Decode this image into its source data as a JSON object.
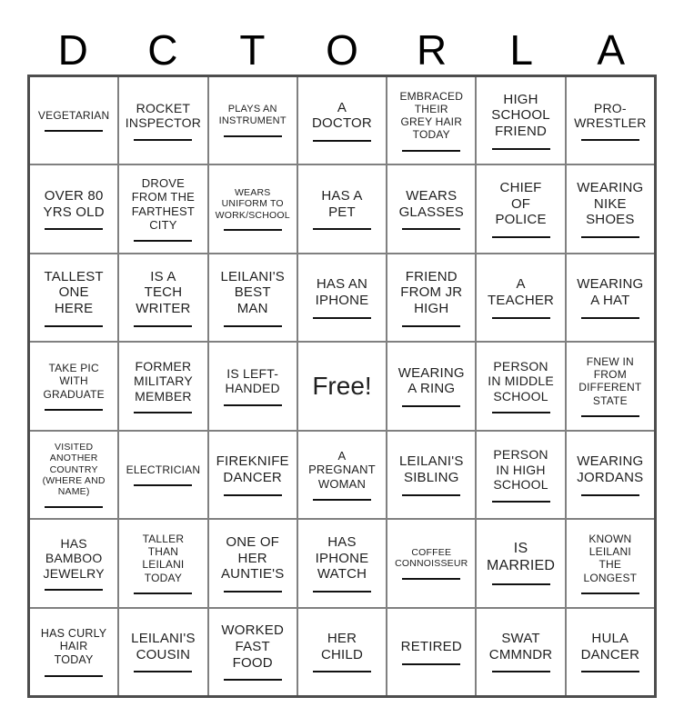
{
  "title_letters": [
    "D",
    "C",
    "T",
    "O",
    "R",
    "L",
    "A"
  ],
  "free_label": "Free!",
  "grid": {
    "rows": [
      [
        {
          "text": "VEGETARIAN",
          "fs": 12,
          "underline": true
        },
        {
          "text": "ROCKET\nINSPECTOR",
          "fs": 14,
          "underline": true
        },
        {
          "text": "PLAYS AN\nINSTRUMENT",
          "fs": 11,
          "underline": true
        },
        {
          "text": "A\nDOCTOR",
          "fs": 15,
          "underline": true
        },
        {
          "text": "EMBRACED\nTHEIR\nGREY HAIR\nTODAY",
          "fs": 12,
          "underline": true
        },
        {
          "text": "HIGH\nSCHOOL\nFRIEND",
          "fs": 15,
          "underline": true
        },
        {
          "text": "PRO-\nWRESTLER",
          "fs": 14,
          "underline": true
        }
      ],
      [
        {
          "text": "OVER 80\nYRS OLD",
          "fs": 15,
          "underline": true
        },
        {
          "text": "DROVE\nFROM THE\nFARTHEST\nCITY",
          "fs": 13,
          "underline": true
        },
        {
          "text": "WEARS\nUNIFORM TO\nWORK/SCHOOL",
          "fs": 10.5,
          "underline": true
        },
        {
          "text": "HAS A\nPET",
          "fs": 15,
          "underline": true
        },
        {
          "text": "WEARS\nGLASSES",
          "fs": 15,
          "underline": true
        },
        {
          "text": "CHIEF\nOF\nPOLICE",
          "fs": 15,
          "underline": true
        },
        {
          "text": "WEARING\nNIKE\nSHOES",
          "fs": 15,
          "underline": true
        }
      ],
      [
        {
          "text": "TALLEST\nONE\nHERE",
          "fs": 15,
          "underline": true
        },
        {
          "text": "IS A\nTECH\nWRITER",
          "fs": 15,
          "underline": true
        },
        {
          "text": "LEILANI'S\nBEST\nMAN",
          "fs": 15,
          "underline": true
        },
        {
          "text": "HAS AN\nIPHONE",
          "fs": 15,
          "underline": true
        },
        {
          "text": "FRIEND\nFROM JR\nHIGH",
          "fs": 15,
          "underline": true
        },
        {
          "text": "A\nTEACHER",
          "fs": 15,
          "underline": true
        },
        {
          "text": "WEARING\nA HAT",
          "fs": 15,
          "underline": true
        }
      ],
      [
        {
          "text": "TAKE PIC\nWITH\nGRADUATE",
          "fs": 12,
          "underline": true
        },
        {
          "text": "FORMER\nMILITARY\nMEMBER",
          "fs": 14,
          "underline": true
        },
        {
          "text": "IS LEFT-\nHANDED",
          "fs": 14,
          "underline": true
        },
        {
          "text": "Free!",
          "fs": 28,
          "underline": false,
          "free": true
        },
        {
          "text": "WEARING\nA RING",
          "fs": 15,
          "underline": true
        },
        {
          "text": "PERSON\nIN MIDDLE\nSCHOOL",
          "fs": 14,
          "underline": true
        },
        {
          "text": "FNEW IN\nFROM\nDIFFERENT\nSTATE",
          "fs": 12,
          "underline": true
        }
      ],
      [
        {
          "text": "VISITED\nANOTHER\nCOUNTRY\n(WHERE AND\nNAME)",
          "fs": 10.5,
          "underline": true
        },
        {
          "text": "ELECTRICIAN",
          "fs": 12,
          "underline": true
        },
        {
          "text": "FIREKNIFE\nDANCER",
          "fs": 15,
          "underline": true
        },
        {
          "text": "A\nPREGNANT\nWOMAN",
          "fs": 13,
          "underline": true
        },
        {
          "text": "LEILANI'S\nSIBLING",
          "fs": 15,
          "underline": true
        },
        {
          "text": "PERSON\nIN HIGH\nSCHOOL",
          "fs": 14,
          "underline": true
        },
        {
          "text": "WEARING\nJORDANS",
          "fs": 15,
          "underline": true
        }
      ],
      [
        {
          "text": "HAS\nBAMBOO\nJEWELRY",
          "fs": 14,
          "underline": true
        },
        {
          "text": "TALLER\nTHAN\nLEILANI\nTODAY",
          "fs": 12,
          "underline": true
        },
        {
          "text": "ONE OF\nHER\nAUNTIE'S",
          "fs": 15,
          "underline": true
        },
        {
          "text": "HAS\nIPHONE\nWATCH",
          "fs": 15,
          "underline": true
        },
        {
          "text": "COFFEE\nCONNOISSEUR",
          "fs": 10.5,
          "underline": true
        },
        {
          "text": "IS\nMARRIED",
          "fs": 16,
          "underline": true
        },
        {
          "text": "KNOWN\nLEILANI\nTHE\nLONGEST",
          "fs": 12,
          "underline": true
        }
      ],
      [
        {
          "text": "HAS CURLY\nHAIR\nTODAY",
          "fs": 12.5,
          "underline": true
        },
        {
          "text": "LEILANI'S\nCOUSIN",
          "fs": 15,
          "underline": true
        },
        {
          "text": "WORKED\nFAST\nFOOD",
          "fs": 15,
          "underline": true
        },
        {
          "text": "HER\nCHILD",
          "fs": 15,
          "underline": true
        },
        {
          "text": "RETIRED",
          "fs": 15,
          "underline": true
        },
        {
          "text": "SWAT\nCMMNDR",
          "fs": 15,
          "underline": true
        },
        {
          "text": "HULA\nDANCER",
          "fs": 15,
          "underline": true
        }
      ]
    ]
  }
}
